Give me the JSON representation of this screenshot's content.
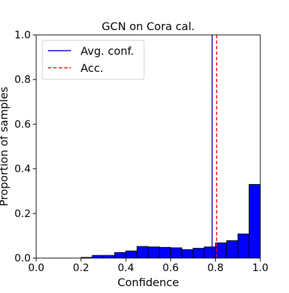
{
  "chart_data": {
    "type": "bar",
    "title": "GCN on Cora cal.",
    "xlabel": "Confidence",
    "ylabel": "Proportion of samples",
    "xlim": [
      0.0,
      1.0
    ],
    "ylim": [
      0.0,
      1.0
    ],
    "x_ticks": [
      "0.0",
      "0.2",
      "0.4",
      "0.6",
      "0.8",
      "1.0"
    ],
    "y_ticks": [
      "0.0",
      "0.2",
      "0.4",
      "0.6",
      "0.8",
      "1.0"
    ],
    "grid": false,
    "legend_position": "top-left",
    "bin_width": 0.05,
    "bins": [
      {
        "x0": 0.2,
        "x1": 0.25,
        "value": 0.003
      },
      {
        "x0": 0.25,
        "x1": 0.3,
        "value": 0.012
      },
      {
        "x0": 0.3,
        "x1": 0.35,
        "value": 0.012
      },
      {
        "x0": 0.35,
        "x1": 0.4,
        "value": 0.025
      },
      {
        "x0": 0.4,
        "x1": 0.45,
        "value": 0.032
      },
      {
        "x0": 0.45,
        "x1": 0.5,
        "value": 0.052
      },
      {
        "x0": 0.5,
        "x1": 0.55,
        "value": 0.05
      },
      {
        "x0": 0.55,
        "x1": 0.6,
        "value": 0.048
      },
      {
        "x0": 0.6,
        "x1": 0.65,
        "value": 0.046
      },
      {
        "x0": 0.65,
        "x1": 0.7,
        "value": 0.038
      },
      {
        "x0": 0.7,
        "x1": 0.75,
        "value": 0.044
      },
      {
        "x0": 0.75,
        "x1": 0.8,
        "value": 0.05
      },
      {
        "x0": 0.8,
        "x1": 0.85,
        "value": 0.068
      },
      {
        "x0": 0.85,
        "x1": 0.9,
        "value": 0.078
      },
      {
        "x0": 0.9,
        "x1": 0.95,
        "value": 0.108
      },
      {
        "x0": 0.95,
        "x1": 1.0,
        "value": 0.33
      }
    ],
    "bar_color": "#0000ff",
    "bar_edge_color": "#000000",
    "lines": [
      {
        "name": "Avg. conf.",
        "x": 0.785,
        "color": "#0000cc",
        "style": "solid"
      },
      {
        "name": "Acc.",
        "x": 0.805,
        "color": "#ff0000",
        "style": "dashed"
      }
    ]
  }
}
